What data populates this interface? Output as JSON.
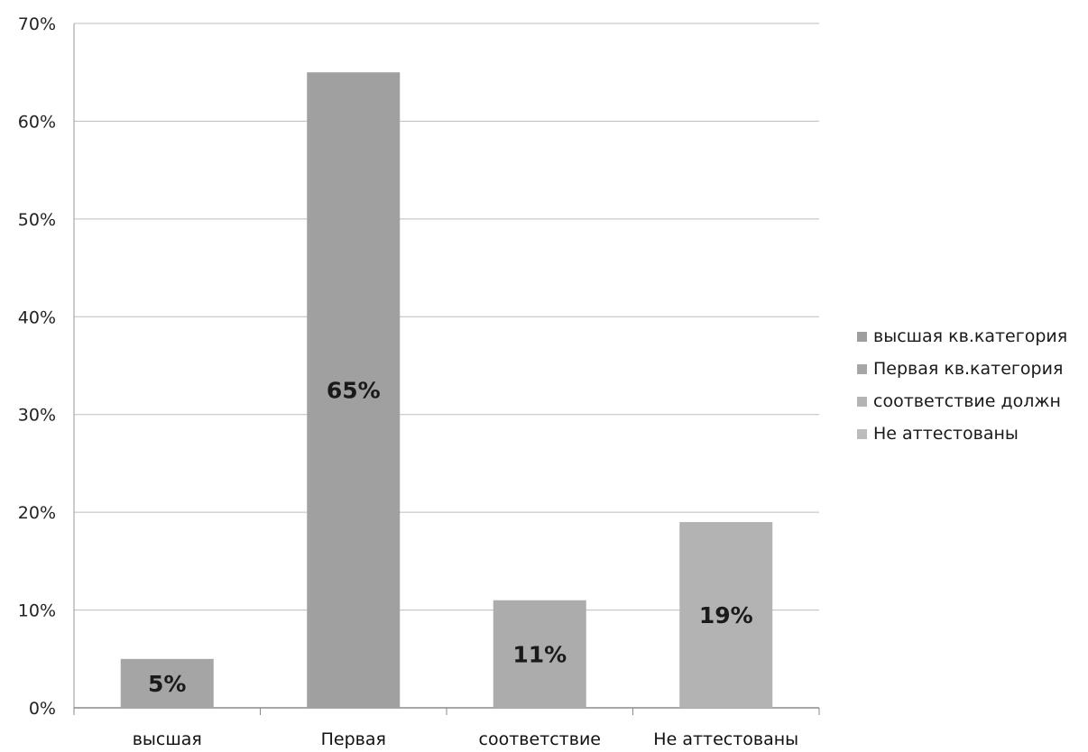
{
  "chart_data": {
    "type": "bar",
    "categories": [
      "высшая",
      "Первая",
      "соответствие",
      "Не аттестованы"
    ],
    "values": [
      5,
      65,
      11,
      19
    ],
    "data_labels": [
      "5%",
      "65%",
      "11%",
      "19%"
    ],
    "ylim": [
      0,
      70
    ],
    "yticks": [
      0,
      10,
      20,
      30,
      40,
      50,
      60,
      70
    ],
    "ytick_labels": [
      "0%",
      "10%",
      "20%",
      "30%",
      "40%",
      "50%",
      "60%",
      "70%"
    ],
    "grid": true,
    "legend_position": "right",
    "legend": [
      {
        "label": "высшая кв.категория",
        "color": "#9e9e9e"
      },
      {
        "label": "Первая кв.категория",
        "color": "#a6a6a6"
      },
      {
        "label": "соответствие должн",
        "color": "#b4b4b4"
      },
      {
        "label": "Не аттестованы",
        "color": "#bcbcbc"
      }
    ],
    "bar_colors": [
      "#a5a5a5",
      "#a0a0a0",
      "#acacac",
      "#b3b3b3"
    ]
  }
}
